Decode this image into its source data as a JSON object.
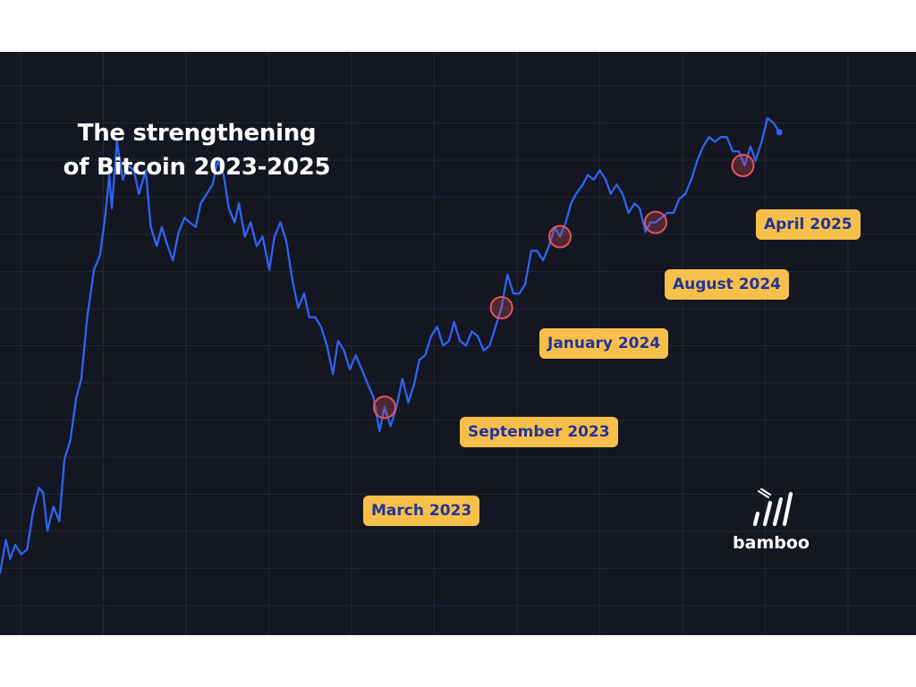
{
  "colors": {
    "background": "#141722",
    "grid": "#232736",
    "line": "#2f63f0",
    "callout_bg": "#f7c04a",
    "callout_text": "#23349a",
    "marker_stroke": "#e4535c"
  },
  "chart_data": {
    "type": "line",
    "title": "The strengthening of Bitcoin 2023-2025",
    "title_lines": [
      "The strengthening",
      "of Bitcoin 2023-2025"
    ],
    "axes_visible": false,
    "grid": true,
    "ylim": [
      0,
      100
    ],
    "xlim": [
      0,
      100
    ],
    "series": [
      {
        "values": [
          [
            0,
            4
          ],
          [
            0.7,
            11
          ],
          [
            1.2,
            7
          ],
          [
            1.8,
            10
          ],
          [
            2.5,
            8
          ],
          [
            3.2,
            9
          ],
          [
            3.9,
            17
          ],
          [
            4.6,
            22
          ],
          [
            5.1,
            21
          ],
          [
            5.6,
            13
          ],
          [
            6.3,
            18
          ],
          [
            7.0,
            15
          ],
          [
            7.6,
            28
          ],
          [
            8.3,
            32
          ],
          [
            9.0,
            41
          ],
          [
            9.6,
            45
          ],
          [
            10.3,
            58
          ],
          [
            11.1,
            68
          ],
          [
            11.8,
            71
          ],
          [
            12.4,
            79
          ],
          [
            12.9,
            88
          ],
          [
            13.2,
            81
          ],
          [
            13.8,
            95
          ],
          [
            14.5,
            87
          ],
          [
            15.1,
            90
          ],
          [
            15.8,
            89
          ],
          [
            16.4,
            84
          ],
          [
            17.2,
            89
          ],
          [
            17.8,
            77
          ],
          [
            18.5,
            73
          ],
          [
            19.1,
            77
          ],
          [
            19.8,
            73
          ],
          [
            20.4,
            70
          ],
          [
            21.1,
            76
          ],
          [
            21.8,
            79
          ],
          [
            22.4,
            78
          ],
          [
            23.1,
            77
          ],
          [
            23.7,
            82
          ],
          [
            24.4,
            84
          ],
          [
            25.1,
            86
          ],
          [
            25.7,
            91
          ],
          [
            26.4,
            88
          ],
          [
            27.0,
            81
          ],
          [
            27.7,
            78
          ],
          [
            28.2,
            82
          ],
          [
            28.9,
            75
          ],
          [
            29.6,
            78
          ],
          [
            30.3,
            73
          ],
          [
            31.0,
            75
          ],
          [
            31.8,
            68
          ],
          [
            32.4,
            75
          ],
          [
            33.1,
            78
          ],
          [
            33.8,
            74
          ],
          [
            34.5,
            66
          ],
          [
            35.2,
            60
          ],
          [
            35.9,
            63
          ],
          [
            36.5,
            58
          ],
          [
            37.2,
            58
          ],
          [
            37.9,
            56
          ],
          [
            38.6,
            52
          ],
          [
            39.3,
            46
          ],
          [
            39.9,
            53
          ],
          [
            40.6,
            51
          ],
          [
            41.3,
            47
          ],
          [
            42.0,
            50
          ],
          [
            42.7,
            47
          ],
          [
            43.4,
            44
          ],
          [
            44.1,
            41
          ],
          [
            44.8,
            34
          ],
          [
            45.4,
            39
          ],
          [
            46.1,
            35
          ],
          [
            46.8,
            39
          ],
          [
            47.5,
            45
          ],
          [
            48.2,
            40
          ],
          [
            48.9,
            44
          ],
          [
            49.5,
            49
          ],
          [
            50.2,
            50
          ],
          [
            50.9,
            54
          ],
          [
            51.6,
            56
          ],
          [
            52.3,
            52
          ],
          [
            53.0,
            53
          ],
          [
            53.6,
            57
          ],
          [
            54.3,
            53
          ],
          [
            55.0,
            52
          ],
          [
            55.7,
            55
          ],
          [
            56.4,
            54
          ],
          [
            57.1,
            51
          ],
          [
            57.8,
            52
          ],
          [
            58.5,
            56
          ],
          [
            59.2,
            60
          ],
          [
            59.9,
            67
          ],
          [
            60.6,
            63
          ],
          [
            61.3,
            63
          ],
          [
            62.0,
            65
          ],
          [
            62.7,
            72
          ],
          [
            63.4,
            72
          ],
          [
            64.1,
            70
          ],
          [
            64.8,
            73
          ],
          [
            65.5,
            77
          ],
          [
            66.1,
            75
          ],
          [
            66.8,
            78
          ],
          [
            67.4,
            82
          ],
          [
            68.0,
            84
          ],
          [
            68.8,
            86
          ],
          [
            69.4,
            88
          ],
          [
            70.1,
            87
          ],
          [
            70.8,
            89
          ],
          [
            71.5,
            87
          ],
          [
            72.1,
            84
          ],
          [
            72.8,
            86
          ],
          [
            73.5,
            84
          ],
          [
            74.2,
            80
          ],
          [
            74.9,
            82
          ],
          [
            75.5,
            81
          ],
          [
            76.2,
            76
          ],
          [
            76.8,
            78
          ],
          [
            77.4,
            78
          ],
          [
            78.1,
            79
          ],
          [
            78.8,
            80
          ],
          [
            79.5,
            80
          ],
          [
            80.2,
            83
          ],
          [
            80.9,
            84
          ],
          [
            81.6,
            87
          ],
          [
            82.3,
            91
          ],
          [
            83.0,
            94
          ],
          [
            83.7,
            96
          ],
          [
            84.4,
            95
          ],
          [
            85.1,
            96
          ],
          [
            85.8,
            96
          ],
          [
            86.5,
            93
          ],
          [
            87.2,
            93
          ],
          [
            87.9,
            90
          ],
          [
            88.6,
            94
          ],
          [
            89.2,
            91
          ],
          [
            89.9,
            95
          ],
          [
            90.6,
            100
          ],
          [
            91.3,
            99
          ],
          [
            92.0,
            97
          ]
        ]
      }
    ],
    "annotations": [
      {
        "label": "March 2023",
        "x": 45.4,
        "y": 39
      },
      {
        "label": "September 2023",
        "x": 59.2,
        "y": 60
      },
      {
        "label": "January 2024",
        "x": 66.1,
        "y": 75
      },
      {
        "label": "August 2024",
        "x": 77.4,
        "y": 78
      },
      {
        "label": "April 2025",
        "x": 87.7,
        "y": 90
      }
    ]
  },
  "logo": {
    "text": "bamboo"
  }
}
